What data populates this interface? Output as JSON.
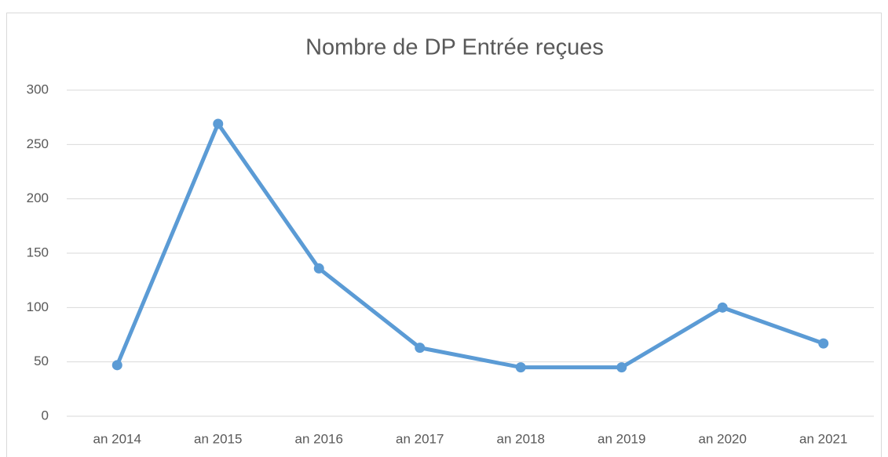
{
  "chart_data": {
    "type": "line",
    "title": "Nombre de DP Entrée reçues",
    "categories": [
      "an 2014",
      "an 2015",
      "an 2016",
      "an 2017",
      "an 2018",
      "an 2019",
      "an 2020",
      "an 2021"
    ],
    "series": [
      {
        "name": "Nombre de DP Entrée reçues",
        "color": "#5b9bd5",
        "values": [
          47,
          269,
          136,
          63,
          45,
          45,
          100,
          67
        ]
      }
    ],
    "ylim": [
      0,
      300
    ],
    "yticks": [
      0,
      50,
      100,
      150,
      200,
      250,
      300
    ],
    "grid": true
  }
}
